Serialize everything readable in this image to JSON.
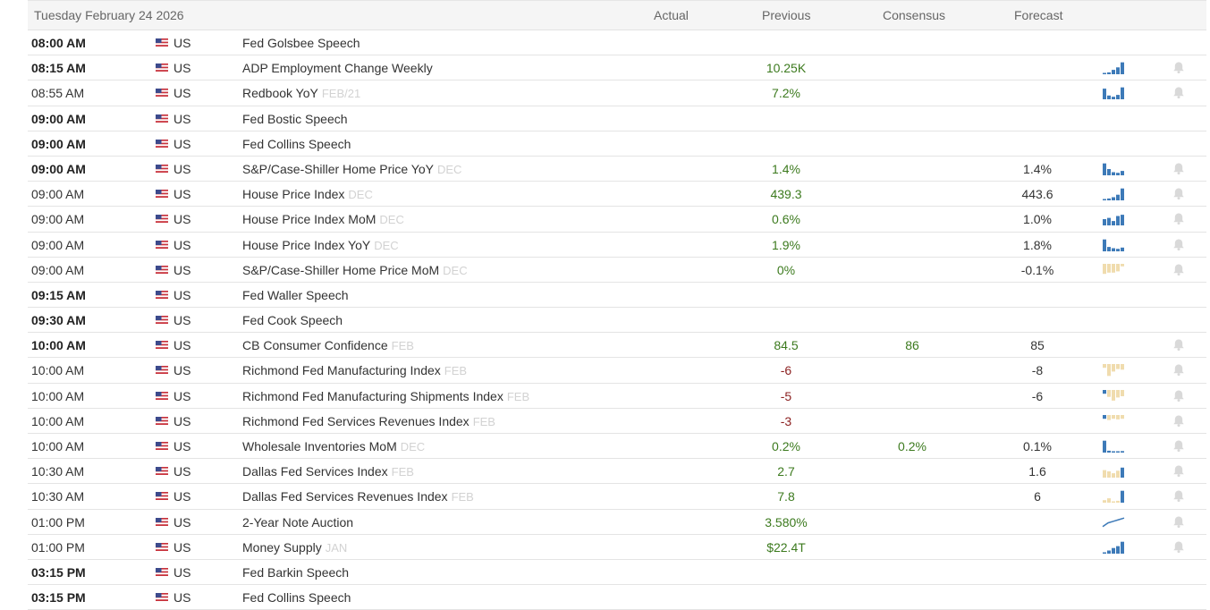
{
  "header": {
    "date": "Tuesday February 24 2026",
    "col_actual": "Actual",
    "col_previous": "Previous",
    "col_consensus": "Consensus",
    "col_forecast": "Forecast"
  },
  "colors": {
    "positive": "#3c7a1e",
    "negative": "#8b1f1f",
    "spark_blue": "#3d7ab8",
    "spark_tan": "#f0dcae",
    "bell": "#d9d9d9"
  },
  "rows": [
    {
      "time": "08:00 AM",
      "bold": true,
      "country": "US",
      "event": "Fed Golsbee Speech",
      "period": "",
      "previous": "",
      "prev_color": "",
      "consensus": "",
      "forecast": "",
      "spark": null,
      "bell": false
    },
    {
      "time": "08:15 AM",
      "bold": true,
      "country": "US",
      "event": "ADP Employment Change Weekly",
      "period": "",
      "previous": "10.25K",
      "prev_color": "green",
      "consensus": "",
      "forecast": "",
      "spark": {
        "color": "blue",
        "type": "bar",
        "values": [
          0.1,
          0.15,
          0.35,
          0.55,
          0.95
        ]
      },
      "bell": true
    },
    {
      "time": "08:55 AM",
      "bold": false,
      "country": "US",
      "event": "Redbook YoY",
      "period": "FEB/21",
      "previous": "7.2%",
      "prev_color": "green",
      "consensus": "",
      "forecast": "",
      "spark": {
        "color": "blue",
        "type": "bar",
        "values": [
          0.85,
          0.3,
          0.2,
          0.35,
          0.95
        ]
      },
      "bell": true
    },
    {
      "time": "09:00 AM",
      "bold": true,
      "country": "US",
      "event": "Fed Bostic Speech",
      "period": "",
      "previous": "",
      "prev_color": "",
      "consensus": "",
      "forecast": "",
      "spark": null,
      "bell": false
    },
    {
      "time": "09:00 AM",
      "bold": true,
      "country": "US",
      "event": "Fed Collins Speech",
      "period": "",
      "previous": "",
      "prev_color": "",
      "consensus": "",
      "forecast": "",
      "spark": null,
      "bell": false
    },
    {
      "time": "09:00 AM",
      "bold": true,
      "country": "US",
      "event": "S&P/Case-Shiller Home Price YoY",
      "period": "DEC",
      "previous": "1.4%",
      "prev_color": "green",
      "consensus": "",
      "forecast": "1.4%",
      "spark": {
        "color": "blue",
        "type": "bar",
        "values": [
          0.95,
          0.5,
          0.25,
          0.2,
          0.35
        ]
      },
      "bell": true
    },
    {
      "time": "09:00 AM",
      "bold": false,
      "country": "US",
      "event": "House Price Index",
      "period": "DEC",
      "previous": "439.3",
      "prev_color": "green",
      "consensus": "",
      "forecast": "443.6",
      "spark": {
        "color": "blue",
        "type": "bar",
        "values": [
          0.1,
          0.15,
          0.25,
          0.45,
          0.95
        ]
      },
      "bell": true
    },
    {
      "time": "09:00 AM",
      "bold": false,
      "country": "US",
      "event": "House Price Index MoM",
      "period": "DEC",
      "previous": "0.6%",
      "prev_color": "green",
      "consensus": "",
      "forecast": "1.0%",
      "spark": {
        "color": "blue",
        "type": "bar",
        "values": [
          0.5,
          0.6,
          0.35,
          0.75,
          0.85
        ]
      },
      "bell": true
    },
    {
      "time": "09:00 AM",
      "bold": false,
      "country": "US",
      "event": "House Price Index YoY",
      "period": "DEC",
      "previous": "1.9%",
      "prev_color": "green",
      "consensus": "",
      "forecast": "1.8%",
      "spark": {
        "color": "blue",
        "type": "bar",
        "values": [
          0.95,
          0.35,
          0.25,
          0.2,
          0.3
        ]
      },
      "bell": true
    },
    {
      "time": "09:00 AM",
      "bold": false,
      "country": "US",
      "event": "S&P/Case-Shiller Home Price MoM",
      "period": "DEC",
      "previous": "0%",
      "prev_color": "green",
      "consensus": "",
      "forecast": "-0.1%",
      "spark": {
        "color": "tan",
        "type": "neg",
        "values": [
          0.8,
          0.7,
          0.7,
          0.6,
          0.2
        ]
      },
      "bell": true
    },
    {
      "time": "09:15 AM",
      "bold": true,
      "country": "US",
      "event": "Fed Waller Speech",
      "period": "",
      "previous": "",
      "prev_color": "",
      "consensus": "",
      "forecast": "",
      "spark": null,
      "bell": false
    },
    {
      "time": "09:30 AM",
      "bold": true,
      "country": "US",
      "event": "Fed Cook Speech",
      "period": "",
      "previous": "",
      "prev_color": "",
      "consensus": "",
      "forecast": "",
      "spark": null,
      "bell": false
    },
    {
      "time": "10:00 AM",
      "bold": true,
      "country": "US",
      "event": "CB Consumer Confidence",
      "period": "FEB",
      "previous": "84.5",
      "prev_color": "green",
      "consensus": "86",
      "forecast": "85",
      "spark": null,
      "bell": true
    },
    {
      "time": "10:00 AM",
      "bold": false,
      "country": "US",
      "event": "Richmond Fed Manufacturing Index",
      "period": "FEB",
      "previous": "-6",
      "prev_color": "red",
      "consensus": "",
      "forecast": "-8",
      "spark": {
        "color": "tan",
        "type": "neg",
        "values": [
          0.3,
          0.95,
          0.6,
          0.4,
          0.45
        ]
      },
      "bell": true
    },
    {
      "time": "10:00 AM",
      "bold": false,
      "country": "US",
      "event": "Richmond Fed Manufacturing Shipments Index",
      "period": "FEB",
      "previous": "-5",
      "prev_color": "red",
      "consensus": "",
      "forecast": "-6",
      "spark": {
        "color": "mix",
        "type": "neg",
        "values": [
          0.3,
          0.55,
          0.85,
          0.6,
          0.5
        ],
        "blue_index": [
          0
        ]
      },
      "bell": true
    },
    {
      "time": "10:00 AM",
      "bold": false,
      "country": "US",
      "event": "Richmond Fed Services Revenues Index",
      "period": "FEB",
      "previous": "-3",
      "prev_color": "red",
      "consensus": "",
      "forecast": "",
      "spark": {
        "color": "mix",
        "type": "neg",
        "values": [
          0.3,
          0.4,
          0.3,
          0.35,
          0.3
        ],
        "blue_index": [
          0
        ]
      },
      "bell": true
    },
    {
      "time": "10:00 AM",
      "bold": false,
      "country": "US",
      "event": "Wholesale Inventories MoM",
      "period": "DEC",
      "previous": "0.2%",
      "prev_color": "green",
      "consensus": "0.2%",
      "forecast": "0.1%",
      "spark": {
        "color": "blue",
        "type": "bar",
        "values": [
          0.95,
          0.15,
          0.1,
          0.1,
          0.12
        ]
      },
      "bell": true
    },
    {
      "time": "10:30 AM",
      "bold": false,
      "country": "US",
      "event": "Dallas Fed Services Index",
      "period": "FEB",
      "previous": "2.7",
      "prev_color": "green",
      "consensus": "",
      "forecast": "1.6",
      "spark": {
        "color": "mix",
        "type": "bar",
        "values": [
          0.6,
          0.5,
          0.35,
          0.55,
          0.8
        ],
        "blue_index": [
          4
        ]
      },
      "bell": true
    },
    {
      "time": "10:30 AM",
      "bold": false,
      "country": "US",
      "event": "Dallas Fed Services Revenues Index",
      "period": "FEB",
      "previous": "7.8",
      "prev_color": "green",
      "consensus": "",
      "forecast": "6",
      "spark": {
        "color": "mix",
        "type": "bar",
        "values": [
          0.2,
          0.35,
          0.1,
          0.15,
          0.95
        ],
        "blue_index": [
          4
        ]
      },
      "bell": true
    },
    {
      "time": "01:00 PM",
      "bold": false,
      "country": "US",
      "event": "2-Year Note Auction",
      "period": "",
      "previous": "3.580%",
      "prev_color": "green",
      "consensus": "",
      "forecast": "",
      "spark": {
        "color": "blue",
        "type": "line",
        "values": [
          0.1,
          0.45,
          0.6,
          0.75,
          0.9
        ]
      },
      "bell": true
    },
    {
      "time": "01:00 PM",
      "bold": false,
      "country": "US",
      "event": "Money Supply",
      "period": "JAN",
      "previous": "$22.4T",
      "prev_color": "green",
      "consensus": "",
      "forecast": "",
      "spark": {
        "color": "blue",
        "type": "bar",
        "values": [
          0.1,
          0.25,
          0.45,
          0.6,
          0.95
        ]
      },
      "bell": true
    },
    {
      "time": "03:15 PM",
      "bold": true,
      "country": "US",
      "event": "Fed Barkin Speech",
      "period": "",
      "previous": "",
      "prev_color": "",
      "consensus": "",
      "forecast": "",
      "spark": null,
      "bell": false
    },
    {
      "time": "03:15 PM",
      "bold": true,
      "country": "US",
      "event": "Fed Collins Speech",
      "period": "",
      "previous": "",
      "prev_color": "",
      "consensus": "",
      "forecast": "",
      "spark": null,
      "bell": false
    }
  ]
}
